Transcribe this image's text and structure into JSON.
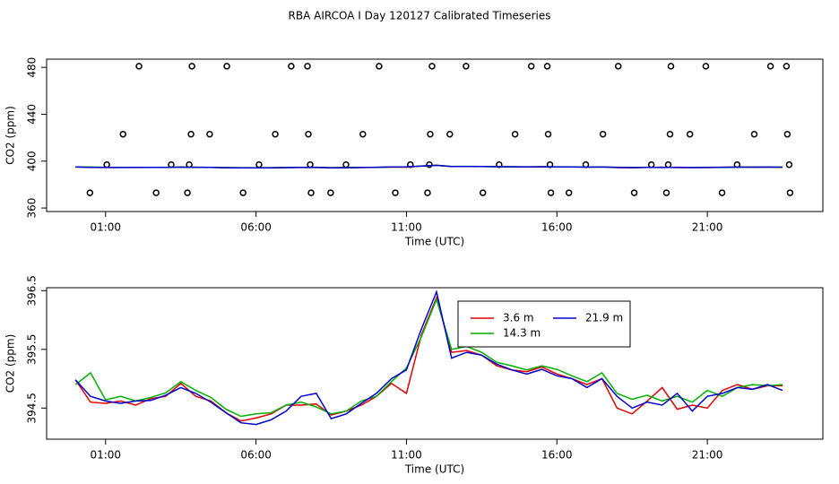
{
  "title": "RBA AIRCOA I  Day 120127  Calibrated Timeseries",
  "chart_data": [
    {
      "type": "line",
      "xlabel": "Time (UTC)",
      "ylabel": "CO2 (ppm)",
      "xlim": [
        -0.96,
        24.84
      ],
      "ylim": [
        357,
        487
      ],
      "xticks": [
        {
          "value": 1,
          "label": "01:00"
        },
        {
          "value": 6,
          "label": "06:00"
        },
        {
          "value": 11,
          "label": "11:00"
        },
        {
          "value": 16,
          "label": "16:00"
        },
        {
          "value": 21,
          "label": "21:00"
        }
      ],
      "yticks": [
        360,
        400,
        440,
        480
      ],
      "x": [
        0,
        0.5,
        1,
        1.5,
        2,
        2.5,
        3,
        3.5,
        4,
        4.5,
        5,
        5.5,
        6,
        6.5,
        7,
        7.5,
        8,
        8.5,
        9,
        9.5,
        10,
        10.5,
        11,
        11.5,
        12,
        12.5,
        13,
        13.5,
        14,
        14.5,
        15,
        15.5,
        16,
        16.5,
        17,
        17.5,
        18,
        18.5,
        19,
        19.5,
        20,
        20.5,
        21,
        21.5,
        22,
        22.5,
        23,
        23.5
      ],
      "series": [
        {
          "style": "points",
          "color": "#000000",
          "x": [
            2.11,
            3.87,
            5.03,
            7.17,
            7.71,
            10.09,
            11.85,
            12.98,
            15.15,
            15.68,
            18.04,
            19.79,
            20.95,
            23.1,
            23.63,
            1.58,
            3.84,
            4.46,
            6.64,
            7.74,
            9.55,
            11.79,
            12.44,
            14.61,
            15.71,
            17.53,
            19.76,
            20.42,
            22.56,
            23.66,
            1.04,
            3.18,
            3.78,
            6.1,
            7.8,
            8.99,
            11.13,
            11.76,
            14.08,
            15.77,
            16.96,
            19.14,
            19.7,
            21.99,
            23.72,
            0.48,
            2.68,
            3.72,
            5.57,
            7.83,
            8.48,
            10.63,
            11.7,
            13.54,
            15.8,
            16.4,
            18.57,
            19.64,
            21.49,
            23.75
          ],
          "values": [
            481,
            481,
            481,
            481,
            481,
            481,
            481,
            481,
            481,
            481,
            481,
            481,
            481,
            481,
            481,
            423,
            423,
            423,
            423,
            423,
            423,
            423,
            423,
            423,
            423,
            423,
            423,
            423,
            423,
            423,
            397,
            397,
            397,
            397,
            397,
            397,
            397,
            397,
            397,
            397,
            397,
            397,
            397,
            397,
            397,
            373,
            373,
            373,
            373,
            373,
            373,
            373,
            373,
            373,
            373,
            373,
            373,
            373,
            373,
            373
          ]
        },
        {
          "color": "#e00000",
          "values": [
            394.98,
            394.6,
            394.58,
            394.62,
            394.55,
            394.66,
            394.7,
            394.92,
            394.7,
            394.62,
            394.42,
            394.28,
            394.33,
            394.4,
            394.55,
            394.55,
            394.57,
            394.38,
            394.45,
            394.55,
            394.7,
            394.92,
            394.75,
            395.75,
            396.38,
            395.45,
            395.48,
            395.4,
            395.22,
            395.15,
            395.12,
            395.2,
            395.08,
            395.0,
            394.9,
            395.0,
            394.5,
            394.4,
            394.62,
            394.85,
            394.48,
            394.55,
            394.5,
            394.8,
            394.9,
            394.82,
            394.88,
            394.88
          ]
        },
        {
          "color": "#00b000",
          "values": [
            394.9,
            395.1,
            394.64,
            394.7,
            394.62,
            394.68,
            394.76,
            394.95,
            394.8,
            394.68,
            394.48,
            394.36,
            394.4,
            394.42,
            394.55,
            394.6,
            394.52,
            394.4,
            394.45,
            394.62,
            394.7,
            394.95,
            395.18,
            395.72,
            396.35,
            395.5,
            395.55,
            395.45,
            395.28,
            395.22,
            395.15,
            395.22,
            395.16,
            395.05,
            394.95,
            395.1,
            394.75,
            394.65,
            394.72,
            394.62,
            394.7,
            394.6,
            394.8,
            394.7,
            394.85,
            394.9,
            394.88,
            394.9
          ]
        },
        {
          "color": "#0000d0",
          "values": [
            394.98,
            394.7,
            394.62,
            394.58,
            394.62,
            394.63,
            394.72,
            394.85,
            394.75,
            394.6,
            394.42,
            394.25,
            394.22,
            394.3,
            394.45,
            394.7,
            394.75,
            394.32,
            394.4,
            394.58,
            394.75,
            395.0,
            395.15,
            395.85,
            396.48,
            395.35,
            395.45,
            395.4,
            395.25,
            395.15,
            395.08,
            395.16,
            395.05,
            395.0,
            394.85,
            395.0,
            394.7,
            394.5,
            394.6,
            394.55,
            394.75,
            394.45,
            394.7,
            394.75,
            394.85,
            394.82,
            394.9,
            394.8
          ]
        }
      ]
    },
    {
      "type": "line",
      "xlabel": "Time (UTC)",
      "ylabel": "CO2 (ppm)",
      "legend": "top",
      "xlim": [
        -0.96,
        24.84
      ],
      "ylim": [
        393.97,
        396.55
      ],
      "xticks": [
        {
          "value": 1,
          "label": "01:00"
        },
        {
          "value": 6,
          "label": "06:00"
        },
        {
          "value": 11,
          "label": "11:00"
        },
        {
          "value": 16,
          "label": "16:00"
        },
        {
          "value": 21,
          "label": "21:00"
        }
      ],
      "yticks": [
        394.5,
        395.5,
        396.5
      ],
      "x": [
        0,
        0.5,
        1,
        1.5,
        2,
        2.5,
        3,
        3.5,
        4,
        4.5,
        5,
        5.5,
        6,
        6.5,
        7,
        7.5,
        8,
        8.5,
        9,
        9.5,
        10,
        10.5,
        11,
        11.5,
        12,
        12.5,
        13,
        13.5,
        14,
        14.5,
        15,
        15.5,
        16,
        16.5,
        17,
        17.5,
        18,
        18.5,
        19,
        19.5,
        20,
        20.5,
        21,
        21.5,
        22,
        22.5,
        23,
        23.5
      ],
      "series": [
        {
          "name": "3.6 m",
          "color": "#e00000",
          "values": [
            394.98,
            394.6,
            394.58,
            394.62,
            394.55,
            394.66,
            394.7,
            394.92,
            394.7,
            394.62,
            394.42,
            394.28,
            394.33,
            394.4,
            394.55,
            394.55,
            394.57,
            394.38,
            394.45,
            394.55,
            394.7,
            394.92,
            394.75,
            395.75,
            396.38,
            395.45,
            395.48,
            395.4,
            395.22,
            395.15,
            395.12,
            395.2,
            395.08,
            395.0,
            394.9,
            395.0,
            394.5,
            394.4,
            394.62,
            394.85,
            394.48,
            394.55,
            394.5,
            394.8,
            394.9,
            394.82,
            394.88,
            394.88
          ]
        },
        {
          "name": "14.3 m",
          "color": "#00b000",
          "values": [
            394.9,
            395.1,
            394.64,
            394.7,
            394.62,
            394.68,
            394.76,
            394.95,
            394.8,
            394.68,
            394.48,
            394.36,
            394.4,
            394.42,
            394.55,
            394.6,
            394.52,
            394.4,
            394.45,
            394.62,
            394.7,
            394.95,
            395.18,
            395.72,
            396.35,
            395.5,
            395.55,
            395.45,
            395.28,
            395.22,
            395.15,
            395.22,
            395.16,
            395.05,
            394.95,
            395.1,
            394.75,
            394.65,
            394.72,
            394.62,
            394.7,
            394.6,
            394.8,
            394.7,
            394.85,
            394.9,
            394.88,
            394.9
          ]
        },
        {
          "name": "21.9 m",
          "color": "#0000d0",
          "values": [
            394.98,
            394.7,
            394.62,
            394.58,
            394.62,
            394.63,
            394.72,
            394.85,
            394.75,
            394.6,
            394.42,
            394.25,
            394.22,
            394.3,
            394.45,
            394.7,
            394.75,
            394.32,
            394.4,
            394.58,
            394.75,
            395.0,
            395.15,
            395.85,
            396.48,
            395.35,
            395.45,
            395.4,
            395.25,
            395.15,
            395.08,
            395.16,
            395.05,
            395.0,
            394.85,
            395.0,
            394.7,
            394.5,
            394.6,
            394.55,
            394.75,
            394.45,
            394.7,
            394.75,
            394.85,
            394.82,
            394.9,
            394.8
          ]
        }
      ]
    }
  ]
}
